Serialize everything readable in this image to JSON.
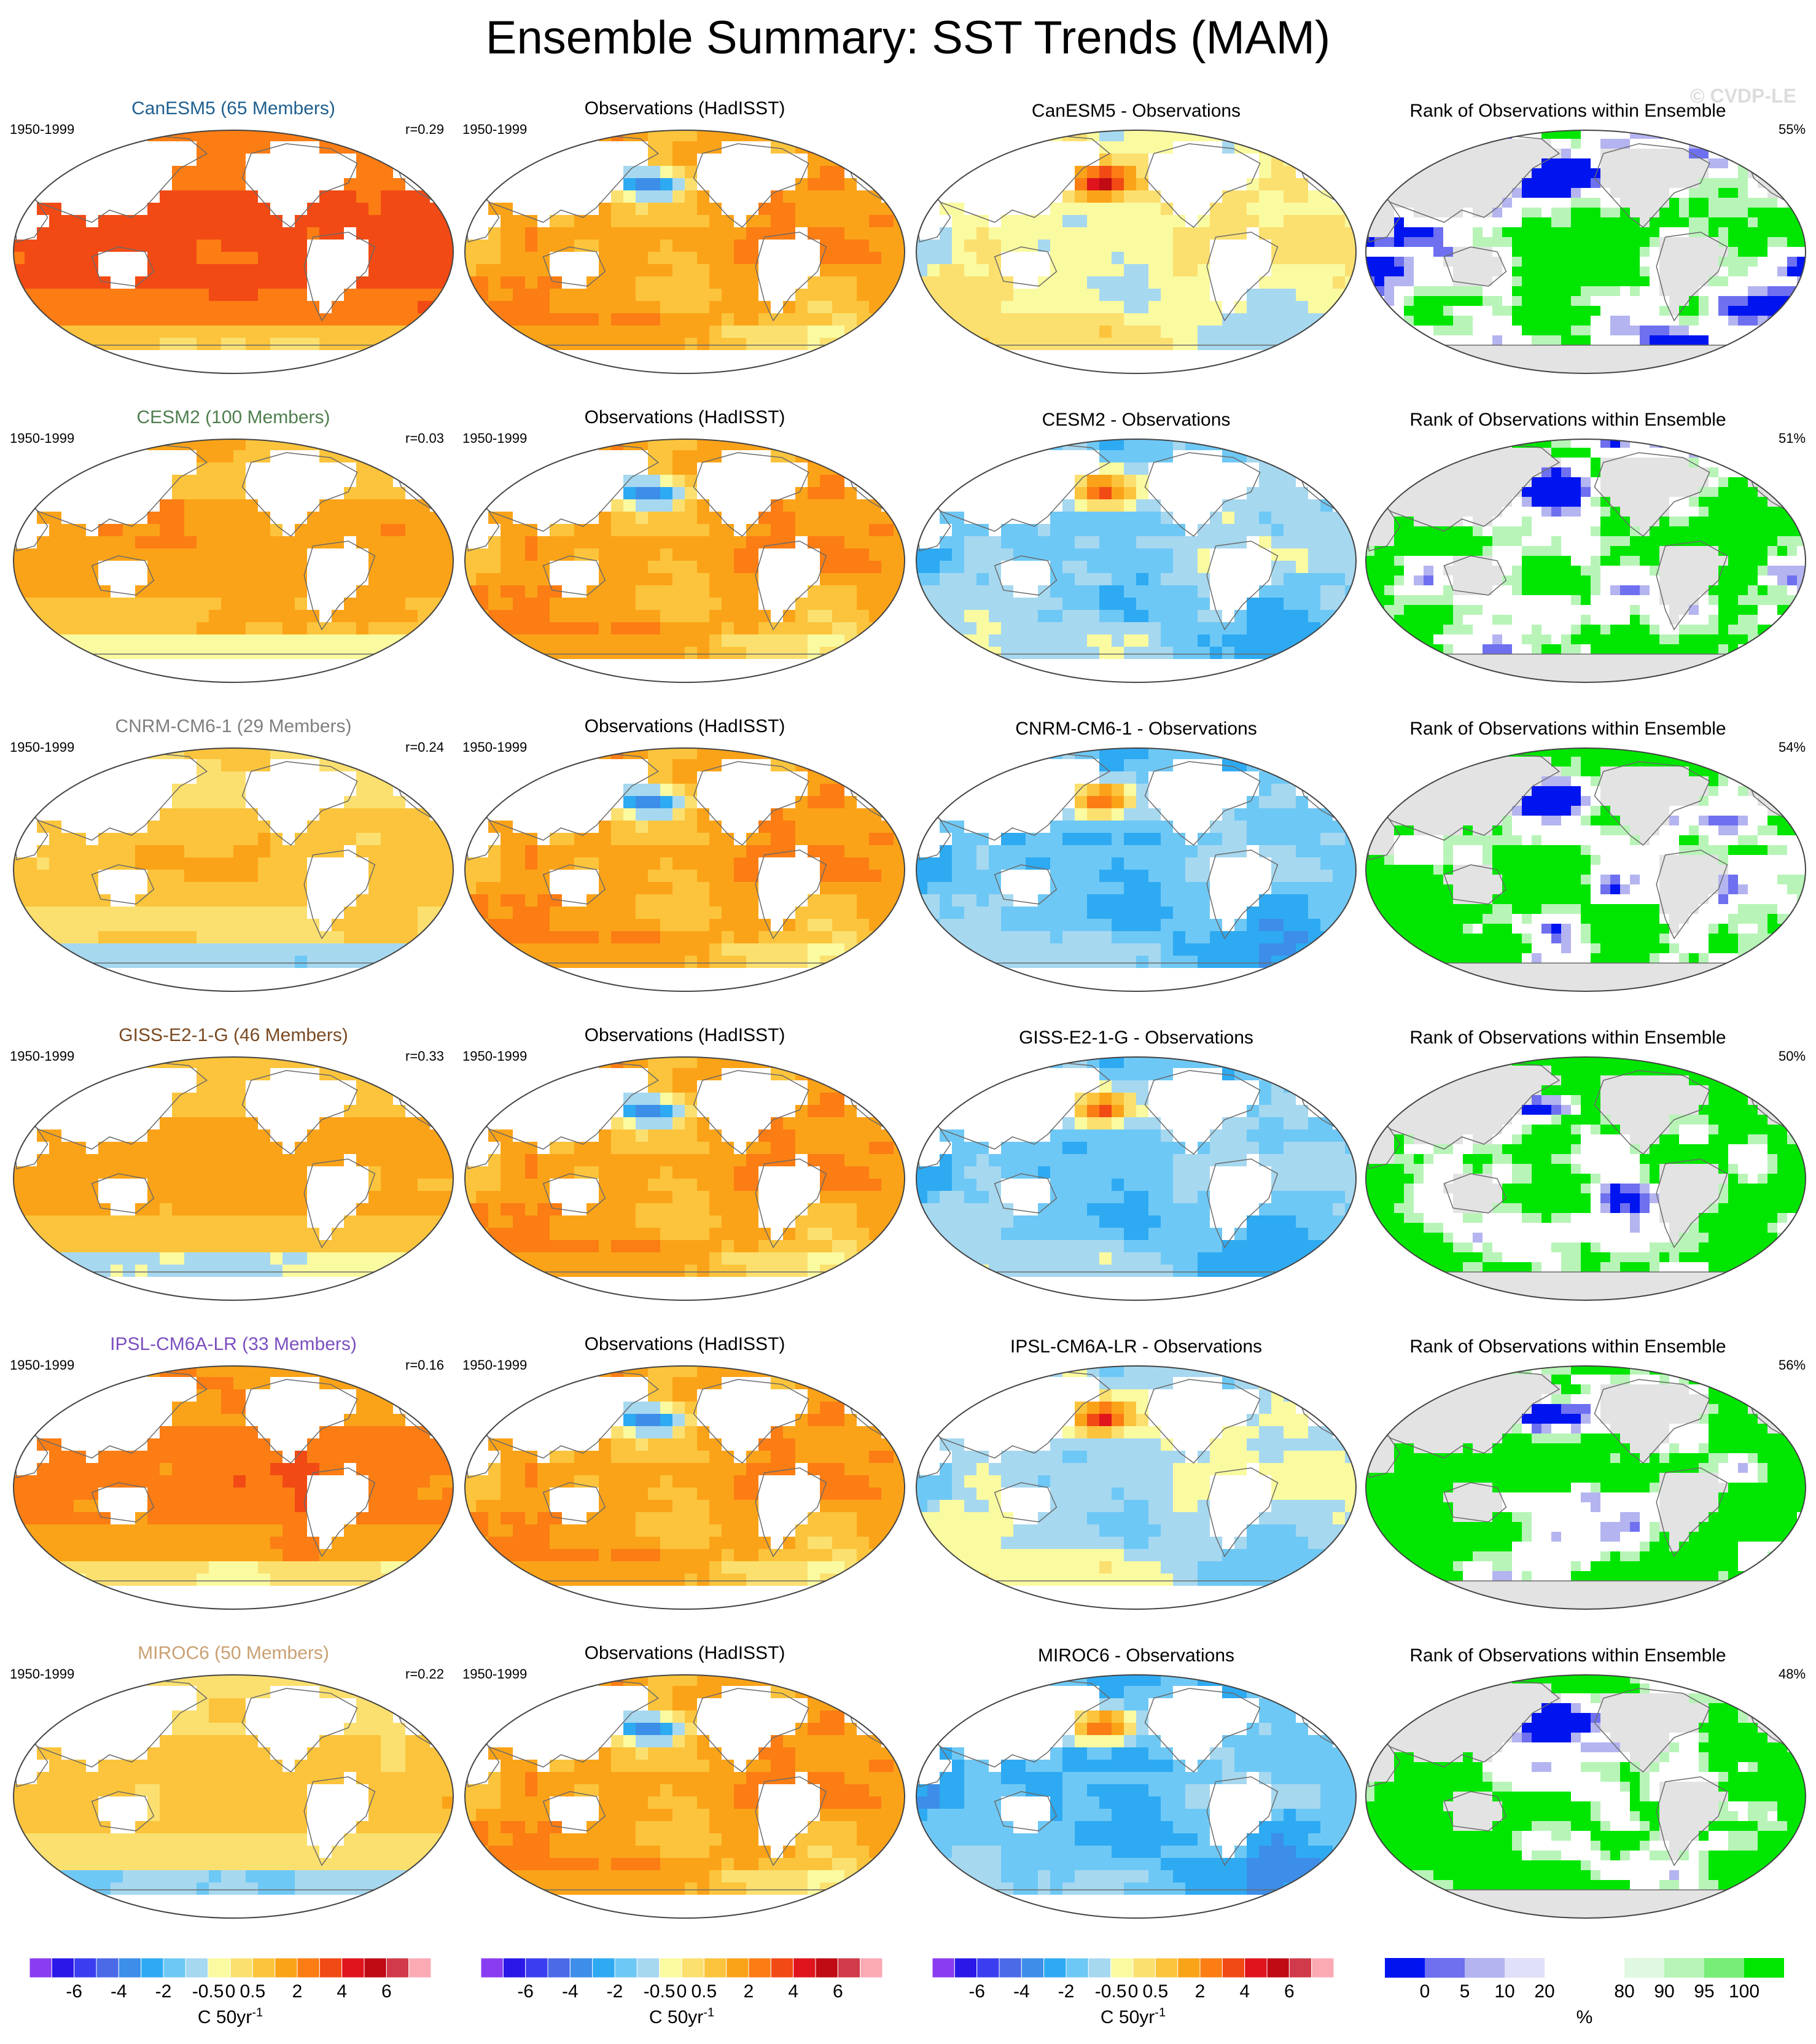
{
  "title": "Ensemble Summary: SST Trends (MAM)",
  "watermark": "© CVDP-LE",
  "period": "1950-1999",
  "obs_title": "Observations (HadISST)",
  "rank_title": "Rank of Observations within Ensemble",
  "rows": [
    {
      "model_title": "CanESM5 (65 Members)",
      "model_color": "#1f5f8f",
      "r_label": "r=0.29",
      "diff_title": "CanESM5 - Observations",
      "rank_pct": "55%",
      "model_bias": 0.8,
      "diff_bias": 0.0,
      "rank_bias": 0.0
    },
    {
      "model_title": "CESM2 (100 Members)",
      "model_color": "#4f7f4f",
      "r_label": "r=0.03",
      "diff_title": "CESM2 - Observations",
      "rank_pct": "51%",
      "model_bias": 0.4,
      "diff_bias": -0.35,
      "rank_bias": 0.25
    },
    {
      "model_title": "CNRM-CM6-1 (29 Members)",
      "model_color": "#7f7f7f",
      "r_label": "r=0.24",
      "diff_title": "CNRM-CM6-1 - Observations",
      "rank_pct": "54%",
      "model_bias": 0.2,
      "diff_bias": -0.45,
      "rank_bias": 0.5
    },
    {
      "model_title": "GISS-E2-1-G (46 Members)",
      "model_color": "#7a4a22",
      "r_label": "r=0.33",
      "diff_title": "GISS-E2-1-G - Observations",
      "rank_pct": "50%",
      "model_bias": 0.35,
      "diff_bias": -0.4,
      "rank_bias": 0.45
    },
    {
      "model_title": "IPSL-CM6A-LR (33 Members)",
      "model_color": "#7b4fc0",
      "r_label": "r=0.16",
      "diff_title": "IPSL-CM6A-LR - Observations",
      "rank_pct": "56%",
      "model_bias": 0.6,
      "diff_bias": -0.2,
      "rank_bias": 0.4
    },
    {
      "model_title": "MIROC6 (50 Members)",
      "model_color": "#caa072",
      "r_label": "r=0.22",
      "diff_title": "MIROC6 - Observations",
      "rank_pct": "48%",
      "model_bias": 0.15,
      "diff_bias": -0.5,
      "rank_bias": 0.55
    }
  ],
  "sst_colorbar": {
    "colors": [
      "#8a3df0",
      "#2a18e8",
      "#3b3ef0",
      "#4a6ae8",
      "#3c8ee8",
      "#2eaaf2",
      "#6ec8f5",
      "#a6d8f0",
      "#fafaa0",
      "#fbe070",
      "#fbc43c",
      "#fba318",
      "#fb7d14",
      "#f24a14",
      "#e0141c",
      "#c00a14",
      "#d03a4a",
      "#fbaab4"
    ],
    "ticks": [
      "-6",
      "-4",
      "-2",
      "-0.5",
      "0",
      "0.5",
      "2",
      "4",
      "6"
    ],
    "unit": "C 50yr",
    "unit_sup": "-1"
  },
  "rank_colorbar": {
    "colors": [
      "#0014f0",
      "#6e70f0",
      "#b4b4f0",
      "#e0e0f8",
      "#ffffff",
      "#ffffff",
      "#e0f8e0",
      "#b8f4b8",
      "#78ee78",
      "#00e600"
    ],
    "ticks": [
      "0",
      "5",
      "10",
      "20",
      "80",
      "90",
      "95",
      "100"
    ],
    "unit": "%"
  },
  "palette": {
    "land": "#ffffff",
    "land_rank": "#e3e3e3",
    "coast": "#6a6a6a"
  }
}
